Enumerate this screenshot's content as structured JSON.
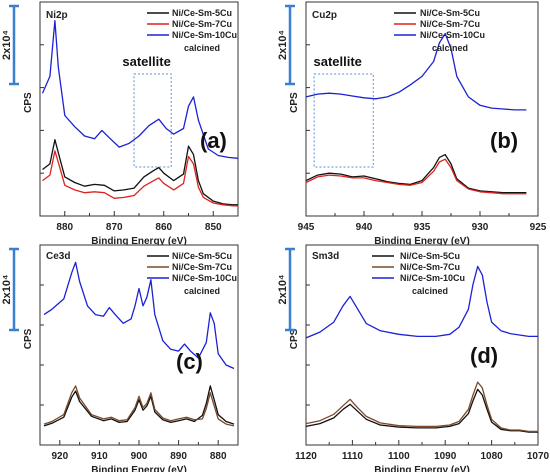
{
  "chart_data": [
    {
      "type": "line",
      "element": "Ni2p",
      "panel_label": "(a)",
      "xlabel": "Binding Energy (eV)",
      "ylabel": "CPS",
      "xlim": [
        885,
        845
      ],
      "x_ticks": [
        880,
        870,
        860,
        850
      ],
      "scale_bar": "2x10⁴",
      "legend": [
        "Ni/Ce-Sm-5Cu",
        "Ni/Ce-Sm-7Cu",
        "Ni/Ce-Sm-10Cu",
        "calcined"
      ],
      "annotation": "satellite",
      "satellite_range": [
        866,
        858.5
      ],
      "series": [
        {
          "name": "Ni/Ce-Sm-5Cu",
          "color": "#111111",
          "x": [
            884.5,
            883,
            882,
            881,
            880,
            878,
            876,
            874,
            872,
            870,
            868,
            866,
            864,
            862,
            861,
            860,
            858,
            856,
            855,
            854,
            853,
            852,
            850,
            848,
            846,
            845
          ],
          "y": [
            50,
            56,
            82,
            62,
            42,
            36,
            32,
            34,
            33,
            27,
            28,
            30,
            42,
            49,
            52,
            46,
            38,
            45,
            75,
            66,
            38,
            24,
            16,
            13,
            12,
            12
          ]
        },
        {
          "name": "Ni/Ce-Sm-7Cu",
          "color": "#e0221e",
          "x": [
            884.5,
            883,
            882,
            881,
            880,
            878,
            876,
            874,
            872,
            870,
            868,
            866,
            864,
            862,
            861,
            860,
            858,
            856,
            855,
            854,
            853,
            852,
            850,
            848,
            846,
            845
          ],
          "y": [
            38,
            44,
            70,
            52,
            33,
            28,
            25,
            26,
            25,
            19,
            20,
            22,
            32,
            38,
            41,
            35,
            28,
            35,
            64,
            56,
            31,
            20,
            14,
            12,
            11,
            11
          ]
        },
        {
          "name": "Ni/Ce-Sm-10Cu",
          "color": "#1c22d4",
          "x": [
            884.5,
            883,
            882,
            881.3,
            880,
            878,
            876,
            874,
            872.5,
            871,
            869,
            867,
            865,
            863,
            861,
            859.5,
            858,
            856,
            855,
            854,
            853,
            851,
            849,
            847,
            845
          ],
          "y": [
            132,
            150,
            210,
            160,
            108,
            96,
            86,
            83,
            92,
            84,
            74,
            78,
            86,
            97,
            104,
            94,
            88,
            94,
            118,
            128,
            103,
            72,
            65,
            63,
            62
          ]
        }
      ]
    },
    {
      "type": "line",
      "element": "Cu2p",
      "panel_label": "(b)",
      "xlabel": "Binding Energy (eV)",
      "ylabel": "CPS",
      "xlim": [
        945,
        925
      ],
      "x_ticks": [
        945,
        940,
        935,
        930,
        925
      ],
      "scale_bar": "2x10⁴",
      "legend": [
        "Ni/Ce-Sm-5Cu",
        "Ni/Ce-Sm-7Cu",
        "Ni/Ce-Sm-10Cu",
        "calcined"
      ],
      "annotation": "satellite",
      "satellite_range": [
        944.3,
        939.2
      ],
      "series": [
        {
          "name": "Ni/Ce-Sm-5Cu",
          "color": "#111111",
          "x": [
            945,
            944,
            943,
            942,
            941,
            940,
            939,
            938,
            937,
            936,
            935,
            934,
            933.5,
            933,
            932.5,
            932,
            931,
            930,
            929,
            928,
            927,
            926
          ],
          "y": [
            38,
            44,
            46,
            45,
            42,
            43,
            40,
            37,
            35,
            34,
            38,
            52,
            63,
            66,
            56,
            40,
            30,
            27,
            26,
            25,
            25,
            25
          ]
        },
        {
          "name": "Ni/Ce-Sm-7Cu",
          "color": "#e0221e",
          "x": [
            945,
            944,
            943,
            942,
            941,
            940,
            939,
            938,
            937,
            936,
            935,
            934,
            933.5,
            933,
            932.5,
            932,
            931,
            930,
            929,
            928,
            927,
            926
          ],
          "y": [
            36,
            42,
            44,
            43,
            41,
            41,
            38,
            36,
            34,
            33,
            36,
            48,
            58,
            61,
            52,
            38,
            29,
            26,
            25,
            24,
            24,
            24
          ]
        },
        {
          "name": "Ni/Ce-Sm-10Cu",
          "color": "#1c22d4",
          "x": [
            945,
            944,
            943,
            942,
            941,
            940,
            939,
            938,
            937,
            936,
            935,
            934,
            933.5,
            933,
            932.5,
            932,
            931,
            930,
            929,
            928,
            927,
            926
          ],
          "y": [
            128,
            131,
            132,
            131,
            129,
            127,
            126,
            128,
            133,
            141,
            150,
            166,
            186,
            196,
            180,
            150,
            128,
            119,
            116,
            115,
            114,
            114
          ]
        }
      ]
    },
    {
      "type": "line",
      "element": "Ce3d",
      "panel_label": "(c)",
      "xlabel": "Binding Energy (eV)",
      "ylabel": "CPS",
      "xlim": [
        925,
        875
      ],
      "x_ticks": [
        920,
        910,
        900,
        890,
        880
      ],
      "scale_bar": "2x10⁴",
      "legend": [
        "Ni/Ce-Sm-5Cu",
        "Ni/Ce-Sm-7Cu",
        "Ni/Ce-Sm-10Cu",
        "calcined"
      ],
      "series": [
        {
          "name": "Ni/Ce-Sm-5Cu",
          "color": "#111111",
          "x": [
            924,
            922,
            919,
            917,
            916,
            915,
            912,
            909,
            907,
            905,
            903,
            901,
            900,
            899,
            898,
            897,
            896,
            894,
            892,
            890,
            888,
            886,
            884,
            883,
            882,
            881,
            880,
            878,
            876
          ],
          "y": [
            22,
            25,
            32,
            55,
            62,
            50,
            33,
            28,
            30,
            26,
            27,
            40,
            52,
            40,
            45,
            56,
            38,
            29,
            26,
            28,
            30,
            27,
            34,
            48,
            68,
            52,
            35,
            27,
            24
          ]
        },
        {
          "name": "Ni/Ce-Sm-7Cu",
          "color": "#7a4a2a",
          "x": [
            924,
            922,
            919,
            917,
            916,
            915,
            912,
            909,
            907,
            905,
            903,
            901,
            900,
            899,
            898,
            897,
            896,
            894,
            892,
            890,
            888,
            886,
            884,
            883,
            882,
            881,
            880,
            878,
            876
          ],
          "y": [
            24,
            27,
            35,
            60,
            68,
            54,
            35,
            30,
            32,
            28,
            29,
            43,
            56,
            43,
            48,
            60,
            41,
            31,
            28,
            30,
            32,
            29,
            30,
            42,
            60,
            45,
            30,
            24,
            22
          ]
        },
        {
          "name": "Ni/Ce-Sm-10Cu",
          "color": "#1c22d4",
          "x": [
            924,
            922,
            919,
            917,
            916,
            915,
            913,
            911,
            909,
            907.5,
            906,
            904,
            902,
            901,
            900,
            899,
            898,
            897,
            896,
            894,
            892,
            890,
            888.5,
            887,
            885,
            883,
            882,
            881,
            880,
            878,
            876
          ],
          "y": [
            150,
            156,
            168,
            198,
            210,
            188,
            160,
            150,
            148,
            158,
            150,
            140,
            145,
            160,
            180,
            160,
            170,
            190,
            150,
            120,
            110,
            108,
            116,
            108,
            100,
            118,
            152,
            140,
            105,
            92,
            88
          ]
        }
      ]
    },
    {
      "type": "line",
      "element": "Sm3d",
      "panel_label": "(d)",
      "xlabel": "Binding Energy (eV)",
      "ylabel": "CPS",
      "xlim": [
        1120,
        1070
      ],
      "x_ticks": [
        1120,
        1110,
        1100,
        1090,
        1080,
        1070
      ],
      "scale_bar": "2x10⁴",
      "legend": [
        "Ni/Ce-Sm-5Cu",
        "Ni/Ce-Sm-7Cu",
        "Ni/Ce-Sm-10Cu",
        "calcined"
      ],
      "series": [
        {
          "name": "Ni/Ce-Sm-5Cu",
          "color": "#111111",
          "x": [
            1120,
            1117,
            1114,
            1112,
            1110.5,
            1109,
            1107,
            1104,
            1100,
            1096,
            1092,
            1089,
            1087,
            1085,
            1084,
            1083,
            1082,
            1081,
            1080,
            1078,
            1076,
            1074,
            1072,
            1070
          ],
          "y": [
            26,
            30,
            38,
            50,
            57,
            48,
            36,
            28,
            25,
            24,
            24,
            26,
            30,
            44,
            62,
            78,
            70,
            50,
            32,
            22,
            20,
            20,
            18,
            18
          ]
        },
        {
          "name": "Ni/Ce-Sm-7Cu",
          "color": "#7a4a2a",
          "x": [
            1120,
            1117,
            1114,
            1112,
            1110.5,
            1109,
            1107,
            1104,
            1100,
            1096,
            1092,
            1089,
            1087,
            1085,
            1084,
            1083,
            1082,
            1081,
            1080,
            1078,
            1076,
            1074,
            1072,
            1070
          ],
          "y": [
            30,
            34,
            43,
            55,
            64,
            53,
            40,
            31,
            27,
            26,
            26,
            28,
            33,
            50,
            70,
            88,
            80,
            56,
            36,
            24,
            21,
            21,
            19,
            19
          ]
        },
        {
          "name": "Ni/Ce-Sm-10Cu",
          "color": "#1c22d4",
          "x": [
            1120,
            1117,
            1114,
            1112,
            1110.5,
            1109,
            1107,
            1104,
            1100,
            1096,
            1092,
            1089,
            1087,
            1085,
            1084,
            1083,
            1082,
            1081,
            1080,
            1078,
            1076,
            1074,
            1072,
            1070
          ],
          "y": [
            150,
            158,
            172,
            195,
            208,
            192,
            170,
            160,
            155,
            152,
            152,
            155,
            165,
            190,
            225,
            250,
            238,
            200,
            172,
            160,
            156,
            154,
            152,
            152
          ]
        }
      ]
    }
  ]
}
